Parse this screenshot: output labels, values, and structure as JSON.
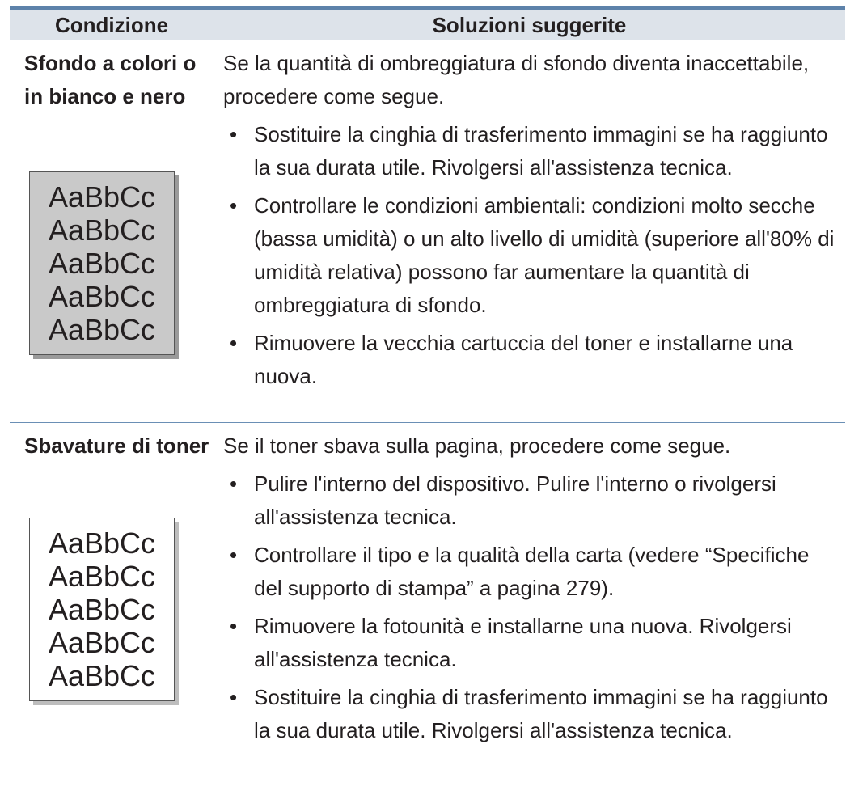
{
  "table": {
    "header": [
      "Condizione",
      "Soluzioni suggerite"
    ],
    "rows": [
      {
        "condition": "Sfondo a colori o in bianco e nero",
        "sample": [
          "AaBbCc",
          "AaBbCc",
          "AaBbCc",
          "AaBbCc",
          "AaBbCc"
        ],
        "intro": "Se la quantità di ombreggiatura di sfondo diventa inaccettabile, procedere come segue.",
        "bullets": [
          "Sostituire la cinghia di trasferimento immagini se ha raggiunto la sua durata utile. Rivolgersi all'assistenza tecnica.",
          "Controllare le condizioni ambientali: condizioni molto secche (bassa umidità) o un alto livello di umidità (superiore all'80% di umidità relativa) possono far aumentare la quantità di ombreggiatura di sfondo.",
          "Rimuovere la vecchia cartuccia del toner e installarne una nuova."
        ]
      },
      {
        "condition": "Sbavature di toner",
        "sample": [
          "AaBbCc",
          "AaBbCc",
          "AaBbCc",
          "AaBbCc",
          "AaBbCc"
        ],
        "intro": "Se il toner sbava sulla pagina, procedere come segue.",
        "bullets": [
          "Pulire l'interno del dispositivo. Pulire l'interno o rivolgersi all'assistenza tecnica.",
          "Controllare il tipo e la qualità della carta (vedere “Specifiche del supporto di stampa” a pagina 279).",
          "Rimuovere la fotounità e installarne una nuova. Rivolgersi all'assistenza tecnica.",
          "Sostituire la cinghia di trasferimento immagini se ha raggiunto la sua durata utile. Rivolgersi all'assistenza tecnica."
        ]
      }
    ]
  }
}
